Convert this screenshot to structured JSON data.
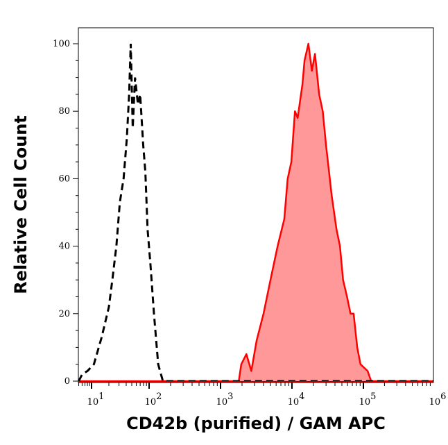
{
  "chart_data": {
    "type": "area",
    "title": "",
    "xlabel": "CD42b (purified) / GAM APC",
    "ylabel": "Relative Cell Count",
    "xscale": "log",
    "xlim": [
      5,
      1000000
    ],
    "ylim": [
      0,
      100
    ],
    "grid": false,
    "legend": "none",
    "x_ticks": [
      {
        "base": "10",
        "exp": "1",
        "value": 10
      },
      {
        "base": "10",
        "exp": "2",
        "value": 100
      },
      {
        "base": "10",
        "exp": "3",
        "value": 1000
      },
      {
        "base": "10",
        "exp": "4",
        "value": 10000
      },
      {
        "base": "10",
        "exp": "5",
        "value": 100000
      },
      {
        "base": "10",
        "exp": "6",
        "value": 1000000
      }
    ],
    "y_ticks": [
      "0",
      "20",
      "40",
      "60",
      "80",
      "100"
    ],
    "series": [
      {
        "style": "dashed-line",
        "color": "#000000",
        "x": [
          5,
          6,
          8,
          11,
          15,
          20,
          23,
          27,
          31,
          36,
          41,
          45,
          48,
          52,
          57,
          64,
          70,
          79,
          86,
          94,
          104,
          117,
          134,
          156,
          218,
          1000000
        ],
        "y": [
          0,
          2,
          3,
          5,
          13,
          22,
          30,
          40,
          53,
          60,
          72,
          85,
          100,
          75,
          90,
          82,
          85,
          70,
          62,
          45,
          35,
          20,
          5,
          0,
          0,
          0
        ]
      },
      {
        "style": "filled",
        "color": "#ff0000",
        "fill": "#ff9999",
        "x": [
          5,
          1800,
          1950,
          2300,
          2700,
          3200,
          4000,
          5000,
          6300,
          7800,
          8700,
          9800,
          11000,
          12000,
          14000,
          15000,
          17000,
          19000,
          21000,
          24000,
          27000,
          30000,
          36000,
          42000,
          47000,
          52000,
          59000,
          66000,
          73000,
          82000,
          91000,
          115000,
          129000,
          1000000
        ],
        "y": [
          0,
          0,
          5,
          8,
          3,
          12,
          20,
          30,
          40,
          48,
          60,
          65,
          80,
          78,
          88,
          95,
          100,
          92,
          97,
          85,
          80,
          70,
          55,
          45,
          40,
          30,
          25,
          20,
          20,
          10,
          5,
          3,
          0,
          0
        ]
      }
    ]
  }
}
